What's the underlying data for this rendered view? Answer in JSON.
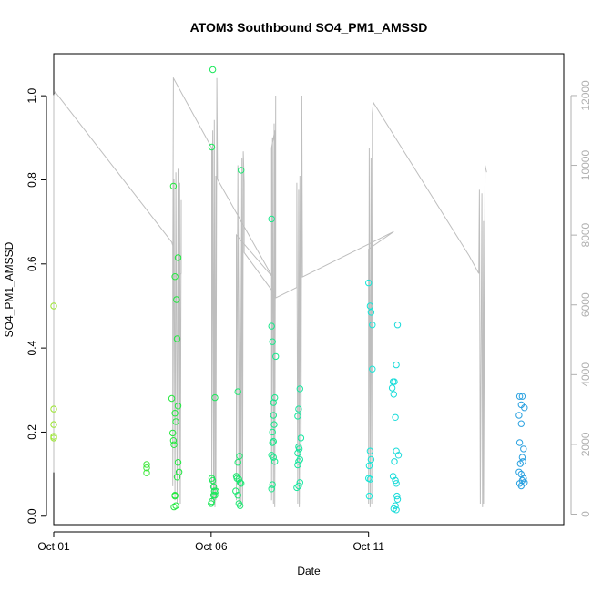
{
  "chart_data": {
    "type": "scatter",
    "title": "ATOM3 Southbound SO4_PM1_AMSSD",
    "xlabel": "Date",
    "ylabel": "SO4_PM1_AMSSD",
    "xlim": [
      0,
      16.2
    ],
    "ylim": [
      -0.02,
      1.1
    ],
    "y_ticks": [
      0.0,
      0.2,
      0.4,
      0.6,
      0.8,
      1.0
    ],
    "y_tick_labels": [
      "0.0",
      "0.2",
      "0.4",
      "0.6",
      "0.8",
      "1.0"
    ],
    "x_ticks": [
      0,
      5,
      10
    ],
    "x_tick_labels": [
      "Oct 01",
      "Oct 06",
      "Oct 11"
    ],
    "x_units": "days since Oct 01",
    "y2_label": "",
    "y2_lim": [
      -300,
      13200
    ],
    "y2_ticks": [
      0,
      2000,
      4000,
      6000,
      8000,
      10000,
      12000
    ],
    "y2_tick_labels": [
      "0",
      "2000",
      "4000",
      "6000",
      "8000",
      "10000",
      "12000"
    ],
    "line_color": "#bebebe",
    "point_colors": {
      "start": "#9be630",
      "mid": "#1ee840",
      "late": "#14e8d8",
      "end": "#2a9ee0"
    },
    "scatter": [
      {
        "x": 0.0,
        "y": 0.5
      },
      {
        "x": 0.0,
        "y": 0.255
      },
      {
        "x": 0.0,
        "y": 0.218
      },
      {
        "x": 0.0,
        "y": 0.19
      },
      {
        "x": 0.0,
        "y": 0.186
      },
      {
        "x": 2.95,
        "y": 0.123
      },
      {
        "x": 2.95,
        "y": 0.115
      },
      {
        "x": 2.95,
        "y": 0.103
      },
      {
        "x": 3.75,
        "y": 0.28
      },
      {
        "x": 3.78,
        "y": 0.198
      },
      {
        "x": 3.8,
        "y": 0.18
      },
      {
        "x": 3.82,
        "y": 0.17
      },
      {
        "x": 3.85,
        "y": 0.05
      },
      {
        "x": 3.88,
        "y": 0.025
      },
      {
        "x": 3.8,
        "y": 0.785
      },
      {
        "x": 3.85,
        "y": 0.57
      },
      {
        "x": 3.9,
        "y": 0.515
      },
      {
        "x": 3.92,
        "y": 0.422
      },
      {
        "x": 3.95,
        "y": 0.615
      },
      {
        "x": 3.85,
        "y": 0.245
      },
      {
        "x": 3.88,
        "y": 0.225
      },
      {
        "x": 3.95,
        "y": 0.262
      },
      {
        "x": 3.95,
        "y": 0.128
      },
      {
        "x": 3.98,
        "y": 0.105
      },
      {
        "x": 3.92,
        "y": 0.093
      },
      {
        "x": 3.85,
        "y": 0.048
      },
      {
        "x": 3.82,
        "y": 0.022
      },
      {
        "x": 5.05,
        "y": 1.062
      },
      {
        "x": 5.02,
        "y": 0.878
      },
      {
        "x": 5.12,
        "y": 0.282
      },
      {
        "x": 5.02,
        "y": 0.09
      },
      {
        "x": 5.05,
        "y": 0.085
      },
      {
        "x": 5.08,
        "y": 0.07
      },
      {
        "x": 5.1,
        "y": 0.06
      },
      {
        "x": 5.12,
        "y": 0.05
      },
      {
        "x": 5.02,
        "y": 0.035
      },
      {
        "x": 5.0,
        "y": 0.03
      },
      {
        "x": 5.08,
        "y": 0.05
      },
      {
        "x": 5.15,
        "y": 0.06
      },
      {
        "x": 5.95,
        "y": 0.823
      },
      {
        "x": 5.85,
        "y": 0.296
      },
      {
        "x": 5.9,
        "y": 0.143
      },
      {
        "x": 5.85,
        "y": 0.128
      },
      {
        "x": 5.8,
        "y": 0.095
      },
      {
        "x": 5.82,
        "y": 0.09
      },
      {
        "x": 5.88,
        "y": 0.088
      },
      {
        "x": 5.92,
        "y": 0.08
      },
      {
        "x": 5.95,
        "y": 0.078
      },
      {
        "x": 5.78,
        "y": 0.06
      },
      {
        "x": 5.85,
        "y": 0.05
      },
      {
        "x": 5.88,
        "y": 0.03
      },
      {
        "x": 5.92,
        "y": 0.025
      },
      {
        "x": 6.92,
        "y": 0.707
      },
      {
        "x": 6.92,
        "y": 0.452
      },
      {
        "x": 6.95,
        "y": 0.415
      },
      {
        "x": 7.05,
        "y": 0.38
      },
      {
        "x": 7.02,
        "y": 0.282
      },
      {
        "x": 6.98,
        "y": 0.27
      },
      {
        "x": 6.98,
        "y": 0.24
      },
      {
        "x": 7.0,
        "y": 0.218
      },
      {
        "x": 6.95,
        "y": 0.2
      },
      {
        "x": 6.98,
        "y": 0.178
      },
      {
        "x": 6.95,
        "y": 0.175
      },
      {
        "x": 6.92,
        "y": 0.145
      },
      {
        "x": 6.98,
        "y": 0.14
      },
      {
        "x": 7.02,
        "y": 0.13
      },
      {
        "x": 6.95,
        "y": 0.075
      },
      {
        "x": 6.92,
        "y": 0.065
      },
      {
        "x": 7.82,
        "y": 0.303
      },
      {
        "x": 7.78,
        "y": 0.255
      },
      {
        "x": 7.75,
        "y": 0.238
      },
      {
        "x": 7.85,
        "y": 0.186
      },
      {
        "x": 7.78,
        "y": 0.165
      },
      {
        "x": 7.8,
        "y": 0.16
      },
      {
        "x": 7.75,
        "y": 0.15
      },
      {
        "x": 7.82,
        "y": 0.135
      },
      {
        "x": 7.78,
        "y": 0.13
      },
      {
        "x": 7.75,
        "y": 0.122
      },
      {
        "x": 7.82,
        "y": 0.08
      },
      {
        "x": 7.78,
        "y": 0.072
      },
      {
        "x": 7.72,
        "y": 0.068
      },
      {
        "x": 10.0,
        "y": 0.555
      },
      {
        "x": 10.05,
        "y": 0.5
      },
      {
        "x": 10.08,
        "y": 0.485
      },
      {
        "x": 10.12,
        "y": 0.455
      },
      {
        "x": 10.12,
        "y": 0.35
      },
      {
        "x": 10.05,
        "y": 0.155
      },
      {
        "x": 10.08,
        "y": 0.135
      },
      {
        "x": 10.02,
        "y": 0.12
      },
      {
        "x": 10.0,
        "y": 0.09
      },
      {
        "x": 10.05,
        "y": 0.088
      },
      {
        "x": 10.02,
        "y": 0.048
      },
      {
        "x": 10.78,
        "y": 0.32
      },
      {
        "x": 10.82,
        "y": 0.32
      },
      {
        "x": 10.75,
        "y": 0.305
      },
      {
        "x": 10.8,
        "y": 0.29
      },
      {
        "x": 10.92,
        "y": 0.455
      },
      {
        "x": 10.88,
        "y": 0.36
      },
      {
        "x": 10.85,
        "y": 0.235
      },
      {
        "x": 10.88,
        "y": 0.155
      },
      {
        "x": 10.95,
        "y": 0.145
      },
      {
        "x": 10.82,
        "y": 0.13
      },
      {
        "x": 10.78,
        "y": 0.095
      },
      {
        "x": 10.85,
        "y": 0.085
      },
      {
        "x": 10.88,
        "y": 0.078
      },
      {
        "x": 10.9,
        "y": 0.048
      },
      {
        "x": 10.92,
        "y": 0.04
      },
      {
        "x": 10.85,
        "y": 0.025
      },
      {
        "x": 10.8,
        "y": 0.018
      },
      {
        "x": 10.88,
        "y": 0.015
      },
      {
        "x": 14.8,
        "y": 0.285
      },
      {
        "x": 14.88,
        "y": 0.285
      },
      {
        "x": 14.85,
        "y": 0.265
      },
      {
        "x": 14.95,
        "y": 0.258
      },
      {
        "x": 14.78,
        "y": 0.24
      },
      {
        "x": 14.85,
        "y": 0.22
      },
      {
        "x": 14.8,
        "y": 0.175
      },
      {
        "x": 14.92,
        "y": 0.16
      },
      {
        "x": 14.88,
        "y": 0.14
      },
      {
        "x": 14.82,
        "y": 0.125
      },
      {
        "x": 14.9,
        "y": 0.13
      },
      {
        "x": 14.78,
        "y": 0.105
      },
      {
        "x": 14.85,
        "y": 0.1
      },
      {
        "x": 14.92,
        "y": 0.09
      },
      {
        "x": 14.88,
        "y": 0.085
      },
      {
        "x": 14.95,
        "y": 0.08
      },
      {
        "x": 14.8,
        "y": 0.078
      },
      {
        "x": 14.85,
        "y": 0.072
      }
    ],
    "altitude_line": [
      [
        0.0,
        1200
      ],
      [
        0.0,
        12000
      ],
      [
        0.05,
        12100
      ],
      [
        3.75,
        7800
      ],
      [
        3.78,
        7700
      ],
      [
        3.78,
        800
      ],
      [
        3.82,
        9600
      ],
      [
        3.85,
        400
      ],
      [
        3.88,
        9800
      ],
      [
        3.92,
        300
      ],
      [
        3.95,
        9900
      ],
      [
        3.98,
        200
      ],
      [
        4.0,
        9500
      ],
      [
        4.02,
        300
      ],
      [
        4.05,
        9000
      ],
      [
        4.05,
        6900
      ],
      [
        3.78,
        6800
      ],
      [
        3.8,
        12500
      ],
      [
        5.02,
        10500
      ],
      [
        5.02,
        400
      ],
      [
        5.05,
        11000
      ],
      [
        5.08,
        300
      ],
      [
        5.1,
        11300
      ],
      [
        5.12,
        200
      ],
      [
        5.15,
        9700
      ],
      [
        5.15,
        400
      ],
      [
        5.18,
        12500
      ],
      [
        5.2,
        9800
      ],
      [
        5.2,
        9600
      ],
      [
        6.95,
        6800
      ],
      [
        5.8,
        8000
      ],
      [
        5.8,
        400
      ],
      [
        5.85,
        10000
      ],
      [
        5.88,
        300
      ],
      [
        5.92,
        9800
      ],
      [
        5.95,
        200
      ],
      [
        5.98,
        10200
      ],
      [
        6.0,
        300
      ],
      [
        6.02,
        10400
      ],
      [
        6.05,
        9500
      ],
      [
        6.05,
        7500
      ],
      [
        7.02,
        6300
      ],
      [
        7.02,
        11000
      ],
      [
        6.92,
        10500
      ],
      [
        6.92,
        400
      ],
      [
        6.95,
        10800
      ],
      [
        6.98,
        300
      ],
      [
        7.0,
        11200
      ],
      [
        7.02,
        200
      ],
      [
        7.05,
        12000
      ],
      [
        7.05,
        6200
      ],
      [
        7.72,
        6500
      ],
      [
        7.72,
        9500
      ],
      [
        7.75,
        300
      ],
      [
        7.78,
        9300
      ],
      [
        7.8,
        200
      ],
      [
        7.82,
        9700
      ],
      [
        7.85,
        300
      ],
      [
        7.88,
        12000
      ],
      [
        7.9,
        6800
      ],
      [
        10.8,
        8100
      ],
      [
        10.0,
        7600
      ],
      [
        10.0,
        300
      ],
      [
        10.02,
        10500
      ],
      [
        10.05,
        200
      ],
      [
        10.08,
        10200
      ],
      [
        10.1,
        300
      ],
      [
        10.12,
        10800
      ],
      [
        10.12,
        11500
      ],
      [
        10.15,
        11800
      ],
      [
        13.2,
        7400
      ],
      [
        13.5,
        6900
      ],
      [
        13.52,
        9300
      ],
      [
        13.55,
        300
      ],
      [
        13.6,
        9200
      ],
      [
        13.62,
        200
      ],
      [
        13.65,
        8400
      ],
      [
        13.65,
        300
      ],
      [
        13.7,
        10000
      ],
      [
        13.75,
        9800
      ]
    ]
  }
}
